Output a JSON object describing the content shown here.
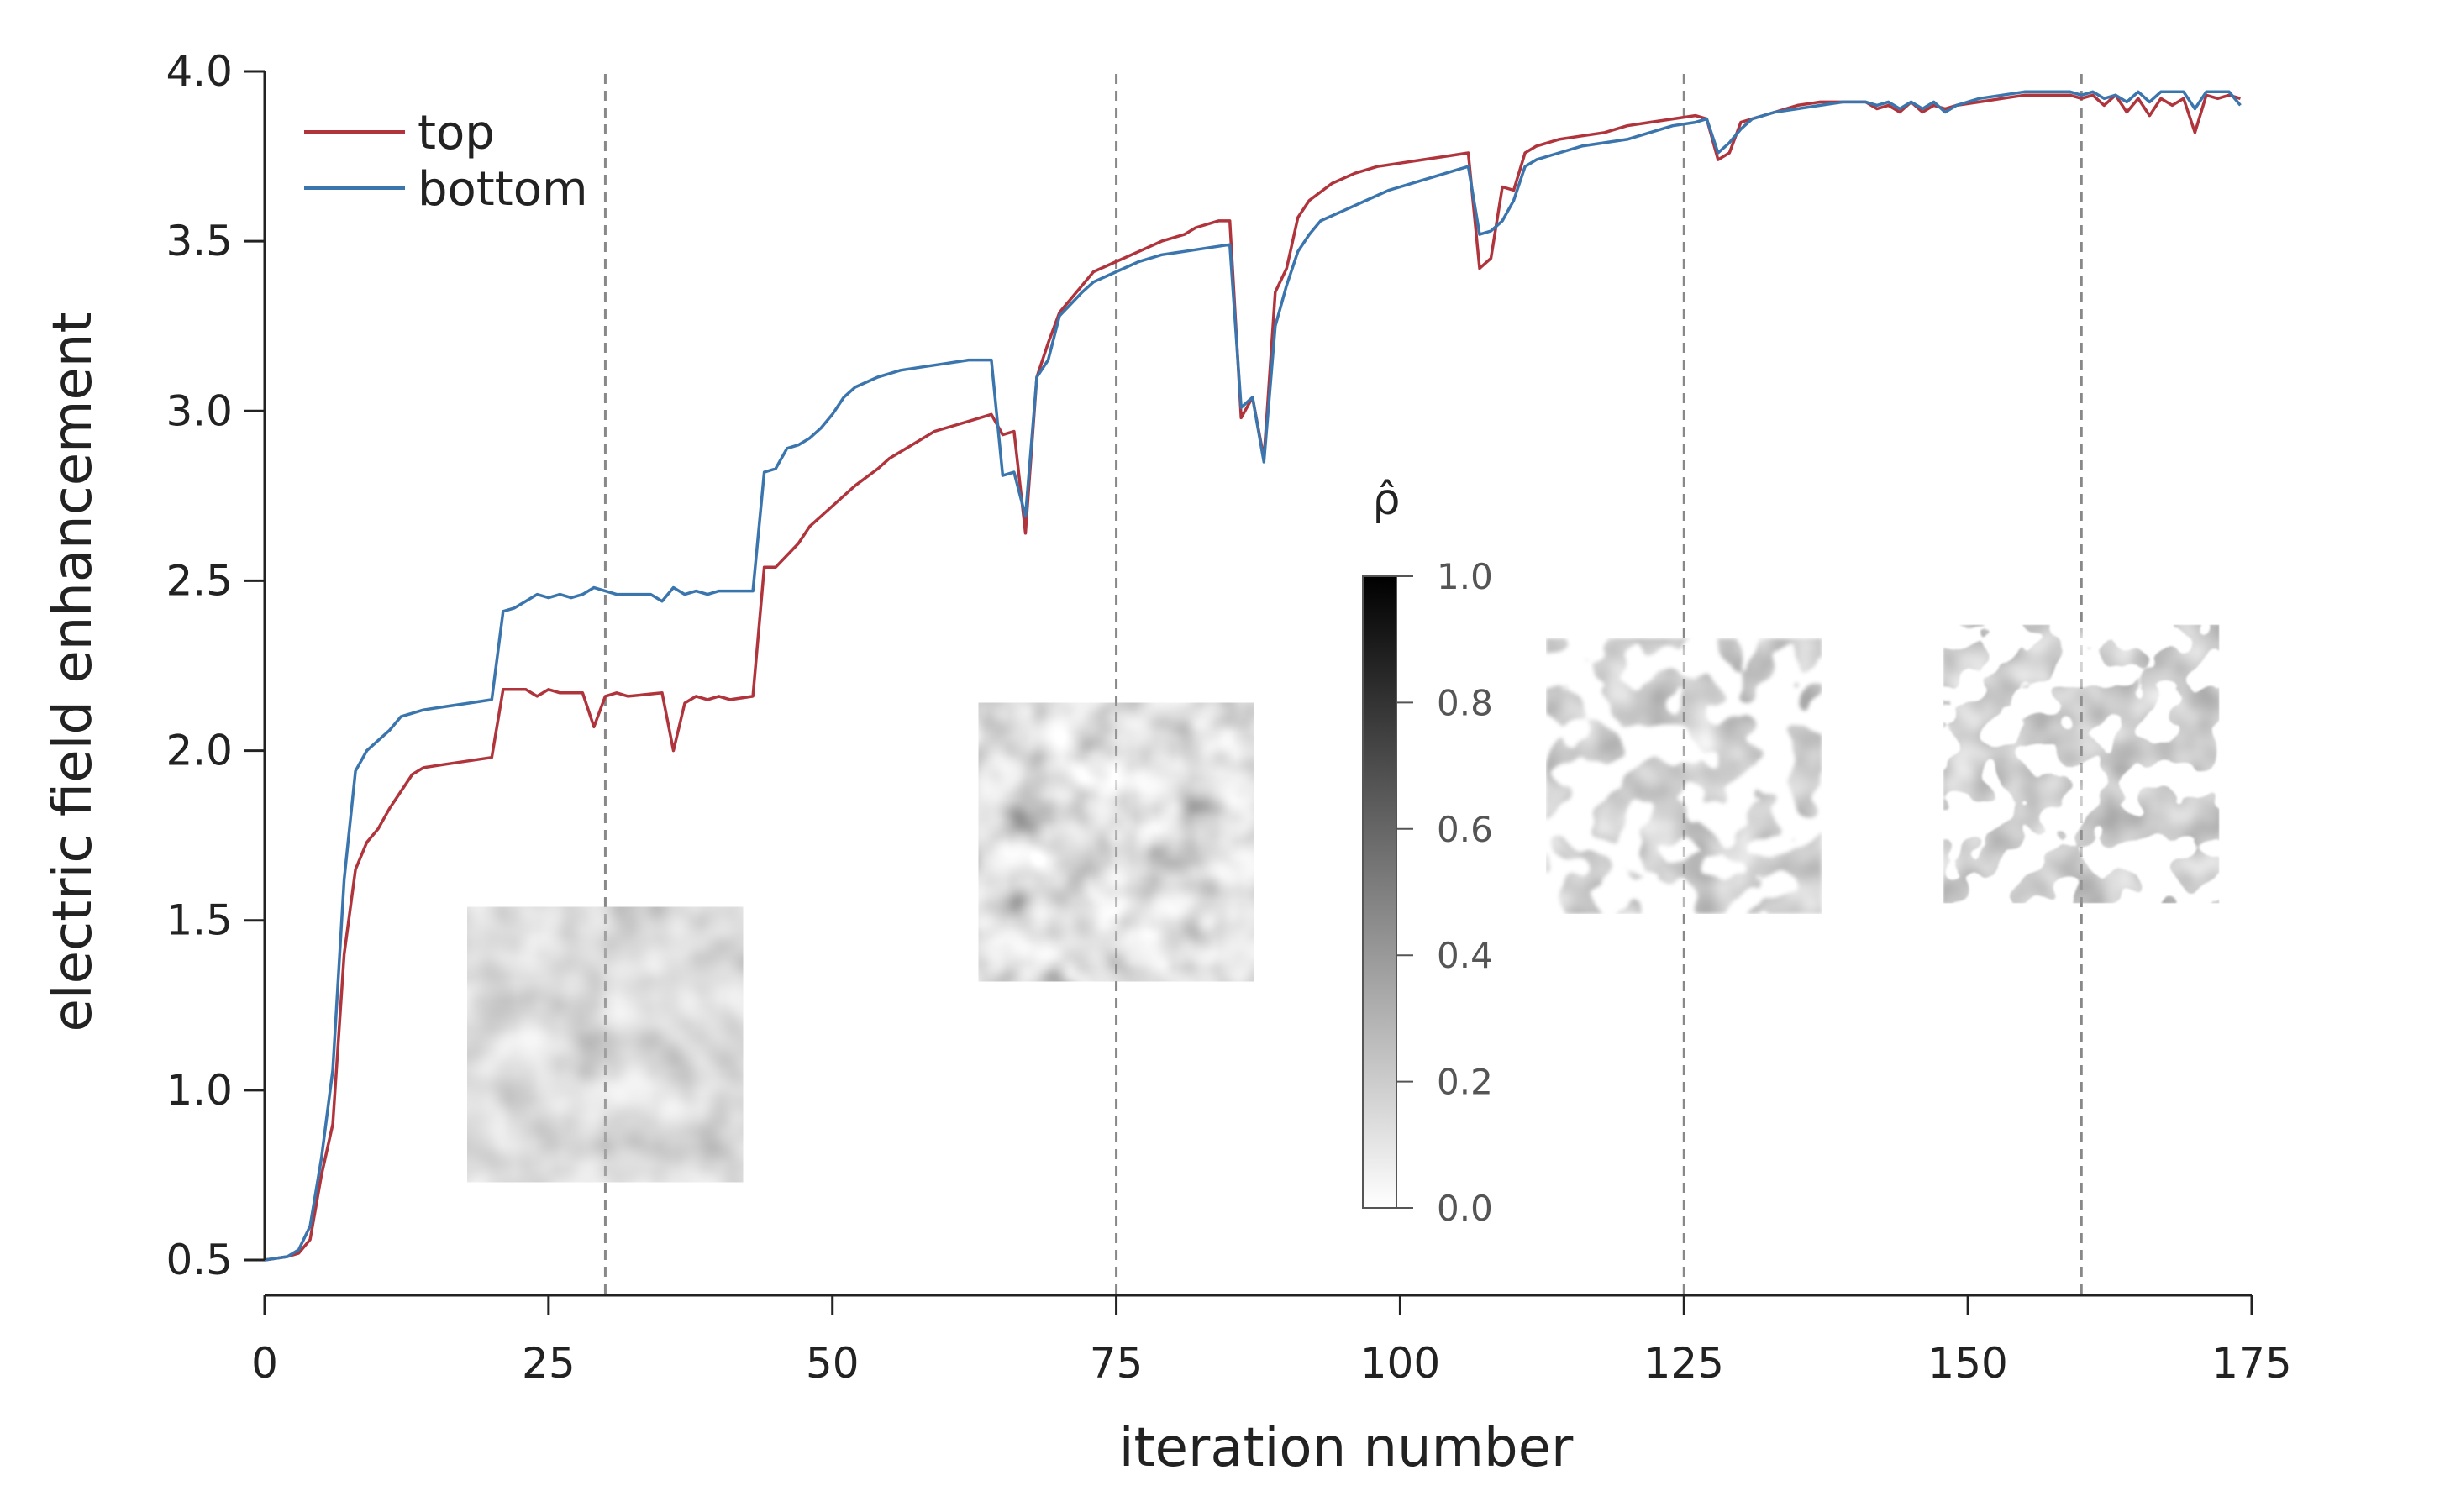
{
  "chart_data": {
    "type": "line",
    "title": "",
    "xlabel": "iteration number",
    "ylabel": "electric field enhancement",
    "xlim": [
      0,
      175
    ],
    "ylim": [
      0.5,
      4.0
    ],
    "xticks": [
      "0",
      "25",
      "50",
      "75",
      "100",
      "125",
      "150",
      "175"
    ],
    "yticks": [
      "0.5",
      "1.0",
      "1.5",
      "2.0",
      "2.5",
      "3.0",
      "3.5",
      "4.0"
    ],
    "grid": false,
    "legend_position": "top-left",
    "vlines": [
      30,
      75,
      125,
      160
    ],
    "series": [
      {
        "name": "top",
        "color": "#b0343c",
        "points": [
          [
            0,
            0.5
          ],
          [
            2,
            0.51
          ],
          [
            3,
            0.52
          ],
          [
            4,
            0.56
          ],
          [
            5,
            0.75
          ],
          [
            6,
            0.9
          ],
          [
            7,
            1.4
          ],
          [
            8,
            1.65
          ],
          [
            9,
            1.73
          ],
          [
            10,
            1.77
          ],
          [
            11,
            1.83
          ],
          [
            12,
            1.88
          ],
          [
            13,
            1.93
          ],
          [
            14,
            1.95
          ],
          [
            16,
            1.96
          ],
          [
            18,
            1.97
          ],
          [
            20,
            1.98
          ],
          [
            21,
            2.18
          ],
          [
            23,
            2.18
          ],
          [
            24,
            2.16
          ],
          [
            25,
            2.18
          ],
          [
            26,
            2.17
          ],
          [
            28,
            2.17
          ],
          [
            29,
            2.07
          ],
          [
            30,
            2.16
          ],
          [
            31,
            2.17
          ],
          [
            32,
            2.16
          ],
          [
            35,
            2.17
          ],
          [
            36,
            2.0
          ],
          [
            37,
            2.14
          ],
          [
            38,
            2.16
          ],
          [
            39,
            2.15
          ],
          [
            40,
            2.16
          ],
          [
            41,
            2.15
          ],
          [
            43,
            2.16
          ],
          [
            44,
            2.54
          ],
          [
            45,
            2.54
          ],
          [
            47,
            2.61
          ],
          [
            48,
            2.66
          ],
          [
            50,
            2.72
          ],
          [
            52,
            2.78
          ],
          [
            54,
            2.83
          ],
          [
            55,
            2.86
          ],
          [
            57,
            2.9
          ],
          [
            59,
            2.94
          ],
          [
            61,
            2.96
          ],
          [
            63,
            2.98
          ],
          [
            64,
            2.99
          ],
          [
            65,
            2.93
          ],
          [
            66,
            2.94
          ],
          [
            67,
            2.64
          ],
          [
            68,
            3.1
          ],
          [
            69,
            3.2
          ],
          [
            70,
            3.29
          ],
          [
            72,
            3.37
          ],
          [
            73,
            3.41
          ],
          [
            75,
            3.44
          ],
          [
            77,
            3.47
          ],
          [
            79,
            3.5
          ],
          [
            81,
            3.52
          ],
          [
            82,
            3.54
          ],
          [
            84,
            3.56
          ],
          [
            85,
            3.56
          ],
          [
            86,
            2.98
          ],
          [
            87,
            3.04
          ],
          [
            88,
            2.86
          ],
          [
            89,
            3.35
          ],
          [
            90,
            3.42
          ],
          [
            91,
            3.57
          ],
          [
            92,
            3.62
          ],
          [
            94,
            3.67
          ],
          [
            96,
            3.7
          ],
          [
            98,
            3.72
          ],
          [
            100,
            3.73
          ],
          [
            102,
            3.74
          ],
          [
            104,
            3.75
          ],
          [
            106,
            3.76
          ],
          [
            107,
            3.42
          ],
          [
            108,
            3.45
          ],
          [
            109,
            3.66
          ],
          [
            110,
            3.65
          ],
          [
            111,
            3.76
          ],
          [
            112,
            3.78
          ],
          [
            114,
            3.8
          ],
          [
            116,
            3.81
          ],
          [
            118,
            3.82
          ],
          [
            120,
            3.84
          ],
          [
            122,
            3.85
          ],
          [
            124,
            3.86
          ],
          [
            126,
            3.87
          ],
          [
            127,
            3.86
          ],
          [
            128,
            3.74
          ],
          [
            129,
            3.76
          ],
          [
            130,
            3.85
          ],
          [
            131,
            3.86
          ],
          [
            133,
            3.88
          ],
          [
            135,
            3.9
          ],
          [
            137,
            3.91
          ],
          [
            139,
            3.91
          ],
          [
            141,
            3.91
          ],
          [
            142,
            3.89
          ],
          [
            143,
            3.9
          ],
          [
            144,
            3.88
          ],
          [
            145,
            3.91
          ],
          [
            146,
            3.88
          ],
          [
            147,
            3.9
          ],
          [
            148,
            3.89
          ],
          [
            149,
            3.9
          ],
          [
            151,
            3.91
          ],
          [
            153,
            3.92
          ],
          [
            155,
            3.93
          ],
          [
            157,
            3.93
          ],
          [
            159,
            3.93
          ],
          [
            160,
            3.92
          ],
          [
            161,
            3.93
          ],
          [
            162,
            3.9
          ],
          [
            163,
            3.93
          ],
          [
            164,
            3.88
          ],
          [
            165,
            3.92
          ],
          [
            166,
            3.87
          ],
          [
            167,
            3.92
          ],
          [
            168,
            3.9
          ],
          [
            169,
            3.92
          ],
          [
            170,
            3.82
          ],
          [
            171,
            3.93
          ],
          [
            172,
            3.92
          ],
          [
            173,
            3.93
          ],
          [
            174,
            3.92
          ]
        ]
      },
      {
        "name": "bottom",
        "color": "#3a75ad",
        "points": [
          [
            0,
            0.5
          ],
          [
            2,
            0.51
          ],
          [
            3,
            0.53
          ],
          [
            4,
            0.6
          ],
          [
            5,
            0.8
          ],
          [
            6,
            1.06
          ],
          [
            7,
            1.62
          ],
          [
            8,
            1.94
          ],
          [
            9,
            2.0
          ],
          [
            10,
            2.03
          ],
          [
            11,
            2.06
          ],
          [
            12,
            2.1
          ],
          [
            13,
            2.11
          ],
          [
            14,
            2.12
          ],
          [
            16,
            2.13
          ],
          [
            18,
            2.14
          ],
          [
            20,
            2.15
          ],
          [
            21,
            2.41
          ],
          [
            22,
            2.42
          ],
          [
            23,
            2.44
          ],
          [
            24,
            2.46
          ],
          [
            25,
            2.45
          ],
          [
            26,
            2.46
          ],
          [
            27,
            2.45
          ],
          [
            28,
            2.46
          ],
          [
            29,
            2.48
          ],
          [
            30,
            2.47
          ],
          [
            31,
            2.46
          ],
          [
            32,
            2.46
          ],
          [
            33,
            2.46
          ],
          [
            34,
            2.46
          ],
          [
            35,
            2.44
          ],
          [
            36,
            2.48
          ],
          [
            37,
            2.46
          ],
          [
            38,
            2.47
          ],
          [
            39,
            2.46
          ],
          [
            40,
            2.47
          ],
          [
            41,
            2.47
          ],
          [
            43,
            2.47
          ],
          [
            44,
            2.82
          ],
          [
            45,
            2.83
          ],
          [
            46,
            2.89
          ],
          [
            47,
            2.9
          ],
          [
            48,
            2.92
          ],
          [
            49,
            2.95
          ],
          [
            50,
            2.99
          ],
          [
            51,
            3.04
          ],
          [
            52,
            3.07
          ],
          [
            54,
            3.1
          ],
          [
            56,
            3.12
          ],
          [
            58,
            3.13
          ],
          [
            60,
            3.14
          ],
          [
            62,
            3.15
          ],
          [
            64,
            3.15
          ],
          [
            65,
            2.81
          ],
          [
            66,
            2.82
          ],
          [
            67,
            2.69
          ],
          [
            68,
            3.1
          ],
          [
            69,
            3.15
          ],
          [
            70,
            3.28
          ],
          [
            72,
            3.35
          ],
          [
            73,
            3.38
          ],
          [
            75,
            3.41
          ],
          [
            77,
            3.44
          ],
          [
            79,
            3.46
          ],
          [
            81,
            3.47
          ],
          [
            83,
            3.48
          ],
          [
            85,
            3.49
          ],
          [
            86,
            3.01
          ],
          [
            87,
            3.04
          ],
          [
            88,
            2.85
          ],
          [
            89,
            3.25
          ],
          [
            90,
            3.37
          ],
          [
            91,
            3.47
          ],
          [
            92,
            3.52
          ],
          [
            93,
            3.56
          ],
          [
            95,
            3.59
          ],
          [
            97,
            3.62
          ],
          [
            99,
            3.65
          ],
          [
            101,
            3.67
          ],
          [
            103,
            3.69
          ],
          [
            105,
            3.71
          ],
          [
            106,
            3.72
          ],
          [
            107,
            3.52
          ],
          [
            108,
            3.53
          ],
          [
            109,
            3.56
          ],
          [
            110,
            3.62
          ],
          [
            111,
            3.72
          ],
          [
            112,
            3.74
          ],
          [
            114,
            3.76
          ],
          [
            116,
            3.78
          ],
          [
            118,
            3.79
          ],
          [
            120,
            3.8
          ],
          [
            122,
            3.82
          ],
          [
            124,
            3.84
          ],
          [
            126,
            3.85
          ],
          [
            127,
            3.86
          ],
          [
            128,
            3.76
          ],
          [
            129,
            3.79
          ],
          [
            130,
            3.83
          ],
          [
            131,
            3.86
          ],
          [
            133,
            3.88
          ],
          [
            135,
            3.89
          ],
          [
            137,
            3.9
          ],
          [
            139,
            3.91
          ],
          [
            141,
            3.91
          ],
          [
            142,
            3.9
          ],
          [
            143,
            3.91
          ],
          [
            144,
            3.89
          ],
          [
            145,
            3.91
          ],
          [
            146,
            3.89
          ],
          [
            147,
            3.91
          ],
          [
            148,
            3.88
          ],
          [
            149,
            3.9
          ],
          [
            151,
            3.92
          ],
          [
            153,
            3.93
          ],
          [
            155,
            3.94
          ],
          [
            157,
            3.94
          ],
          [
            159,
            3.94
          ],
          [
            160,
            3.93
          ],
          [
            161,
            3.94
          ],
          [
            162,
            3.92
          ],
          [
            163,
            3.93
          ],
          [
            164,
            3.91
          ],
          [
            165,
            3.94
          ],
          [
            166,
            3.91
          ],
          [
            167,
            3.94
          ],
          [
            168,
            3.94
          ],
          [
            169,
            3.94
          ],
          [
            170,
            3.89
          ],
          [
            171,
            3.94
          ],
          [
            172,
            3.94
          ],
          [
            173,
            3.94
          ],
          [
            174,
            3.9
          ]
        ]
      }
    ],
    "colorbar": {
      "title": "ρ̂",
      "range": [
        0.0,
        1.0
      ],
      "ticks": [
        "0.0",
        "0.2",
        "0.4",
        "0.6",
        "0.8",
        "1.0"
      ],
      "colormap": "grayscale white-to-black"
    },
    "insets": [
      {
        "name": "design-snapshot-iteration-30",
        "iteration": 30,
        "y_top": 1.54,
        "y_bottom": 0.73,
        "density_mean": 0.3,
        "density_contrast": 0.08,
        "threshold": false
      },
      {
        "name": "design-snapshot-iteration-75",
        "iteration": 75,
        "y_top": 2.14,
        "y_bottom": 1.32,
        "density_mean": 0.36,
        "density_contrast": 0.2,
        "threshold": false
      },
      {
        "name": "design-snapshot-iteration-125",
        "iteration": 125,
        "y_top": 2.33,
        "y_bottom": 1.52,
        "density_mean": 0.4,
        "density_contrast": 0.55,
        "threshold": true
      },
      {
        "name": "design-snapshot-iteration-160",
        "iteration": 160,
        "y_top": 2.37,
        "y_bottom": 1.55,
        "density_mean": 0.42,
        "density_contrast": 0.75,
        "threshold": true
      }
    ]
  }
}
